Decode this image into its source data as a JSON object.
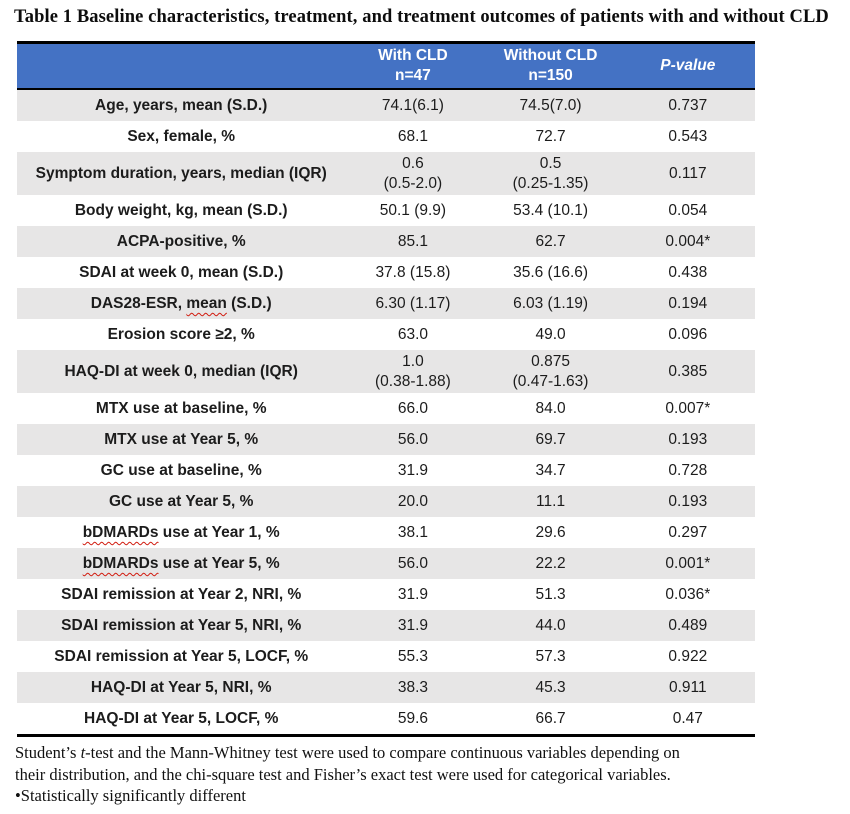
{
  "title": "Table 1 Baseline characteristics, treatment, and treatment outcomes of patients with and without CLD",
  "colors": {
    "header_bg": "#4472C4",
    "header_text": "#FFFFFF",
    "row_shaded_bg": "#E7E6E6",
    "border": "#000000",
    "body_text": "#1C1C1C",
    "spellcheck_squiggle": "#D11A0E"
  },
  "table": {
    "columns": [
      {
        "name": "header-row-label",
        "label": ""
      },
      {
        "name": "header-with-cld",
        "label": "With CLD\nn=47"
      },
      {
        "name": "header-without-cld",
        "label": "Without CLD\nn=150"
      },
      {
        "name": "header-p-value",
        "label": "P-value",
        "italic": true
      }
    ],
    "rows": [
      {
        "label": [
          {
            "t": "Age, years, mean (S.D.)"
          }
        ],
        "with_cld": "74.1(6.1)",
        "without_cld": "74.5(7.0)",
        "p_value": "0.737",
        "shaded": true
      },
      {
        "label": [
          {
            "t": "Sex, female, %"
          }
        ],
        "with_cld": "68.1",
        "without_cld": "72.7",
        "p_value": "0.543",
        "shaded": false
      },
      {
        "label": [
          {
            "t": "Symptom duration, years, median (IQR)"
          }
        ],
        "with_cld": "0.6\n(0.5-2.0)",
        "without_cld": "0.5\n(0.25-1.35)",
        "p_value": "0.117",
        "shaded": true
      },
      {
        "label": [
          {
            "t": "Body weight, kg, mean (S.D.)"
          }
        ],
        "with_cld": "50.1 (9.9)",
        "without_cld": "53.4 (10.1)",
        "p_value": "0.054",
        "shaded": false
      },
      {
        "label": [
          {
            "t": "ACPA-positive, %"
          }
        ],
        "with_cld": "85.1",
        "without_cld": "62.7",
        "p_value": "0.004*",
        "shaded": true
      },
      {
        "label": [
          {
            "t": "SDAI at week 0, mean (S.D.)"
          }
        ],
        "with_cld": "37.8 (15.8)",
        "without_cld": "35.6 (16.6)",
        "p_value": "0.438",
        "shaded": false
      },
      {
        "label": [
          {
            "t": "DAS28-ESR, "
          },
          {
            "t": "mean",
            "sq": true
          },
          {
            "t": " (S.D.)"
          }
        ],
        "with_cld": "6.30 (1.17)",
        "without_cld": "6.03 (1.19)",
        "p_value": "0.194",
        "shaded": true
      },
      {
        "label": [
          {
            "t": "Erosion score ≥2, %"
          }
        ],
        "with_cld": "63.0",
        "without_cld": "49.0",
        "p_value": "0.096",
        "shaded": false
      },
      {
        "label": [
          {
            "t": "HAQ-DI at week 0, median (IQR)"
          }
        ],
        "with_cld": "1.0\n(0.38-1.88)",
        "without_cld": "0.875\n(0.47-1.63)",
        "p_value": "0.385",
        "shaded": true
      },
      {
        "label": [
          {
            "t": "MTX use at baseline, %"
          }
        ],
        "with_cld": "66.0",
        "without_cld": "84.0",
        "p_value": "0.007*",
        "shaded": false
      },
      {
        "label": [
          {
            "t": "MTX use at Year 5, %"
          }
        ],
        "with_cld": "56.0",
        "without_cld": "69.7",
        "p_value": "0.193",
        "shaded": true
      },
      {
        "label": [
          {
            "t": "GC use at baseline, %"
          }
        ],
        "with_cld": "31.9",
        "without_cld": "34.7",
        "p_value": "0.728",
        "shaded": false
      },
      {
        "label": [
          {
            "t": "GC use at Year 5, %"
          }
        ],
        "with_cld": "20.0",
        "without_cld": "11.1",
        "p_value": "0.193",
        "shaded": true
      },
      {
        "label": [
          {
            "t": "bDMARDs",
            "sq": true
          },
          {
            "t": " use at Year 1, %"
          }
        ],
        "with_cld": "38.1",
        "without_cld": "29.6",
        "p_value": "0.297",
        "shaded": false
      },
      {
        "label": [
          {
            "t": "bDMARDs",
            "sq": true
          },
          {
            "t": " use at Year 5, %"
          }
        ],
        "with_cld": "56.0",
        "without_cld": "22.2",
        "p_value": "0.001*",
        "shaded": true
      },
      {
        "label": [
          {
            "t": "SDAI remission at Year 2, NRI, %"
          }
        ],
        "with_cld": "31.9",
        "without_cld": "51.3",
        "p_value": "0.036*",
        "shaded": false
      },
      {
        "label": [
          {
            "t": "SDAI remission at Year 5, NRI, %"
          }
        ],
        "with_cld": "31.9",
        "without_cld": "44.0",
        "p_value": "0.489",
        "shaded": true
      },
      {
        "label": [
          {
            "t": "SDAI remission at Year 5, LOCF, %"
          }
        ],
        "with_cld": "55.3",
        "without_cld": "57.3",
        "p_value": "0.922",
        "shaded": false
      },
      {
        "label": [
          {
            "t": "HAQ-DI at Year 5, NRI, %"
          }
        ],
        "with_cld": "38.3",
        "without_cld": "45.3",
        "p_value": "0.911",
        "shaded": true
      },
      {
        "label": [
          {
            "t": "HAQ-DI at Year 5, LOCF, %"
          }
        ],
        "with_cld": "59.6",
        "without_cld": "66.7",
        "p_value": "0.47",
        "shaded": false
      }
    ]
  },
  "footnote": {
    "methods_pre": "Student’s ",
    "methods_italic": "t",
    "methods_post": "-test and the Mann-Whitney test were used to compare continuous variables depending on\ntheir distribution, and the chi-square test and Fisher’s exact test were used for categorical variables.",
    "significance": "•Statistically significantly different"
  }
}
